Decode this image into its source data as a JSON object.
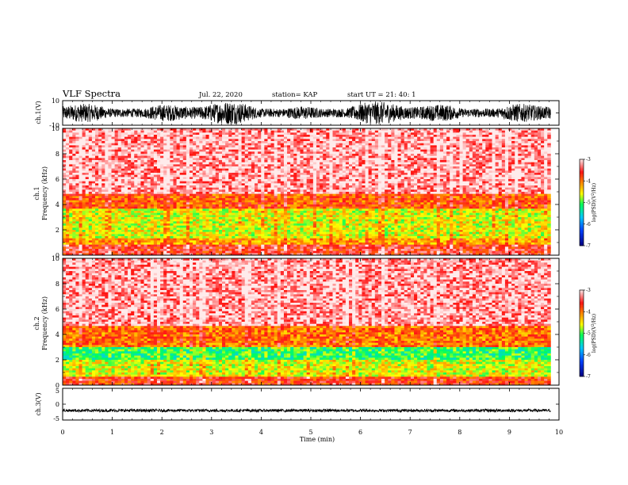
{
  "header": {
    "title": "VLF Spectra",
    "date": "Jul. 22, 2020",
    "station": "station= KAP",
    "start": "start  UT =   21: 40: 1"
  },
  "chart_data": [
    {
      "type": "line",
      "name": "ch1-waveform",
      "ylabel": "ch.1(V)",
      "ylim": [
        -10,
        10
      ],
      "yticks": [
        "10",
        "-10"
      ],
      "xlim": [
        0,
        10
      ],
      "description": "dense noisy voltage waveform saturating near +/-10 V"
    },
    {
      "type": "heatmap",
      "name": "ch1-spectrogram",
      "ylabel": "ch.1\nFrequency (kHz)",
      "ylabel_lines": [
        "ch.1",
        "Frequency (kHz)"
      ],
      "ylim": [
        0,
        10
      ],
      "yticks": [
        "0",
        "2",
        "4",
        "6",
        "8",
        "10"
      ],
      "xlim": [
        0,
        9.83
      ],
      "bands": [
        {
          "from": 0.0,
          "to": 0.8,
          "level": -3.6
        },
        {
          "from": 0.8,
          "to": 1.4,
          "level": -4.2
        },
        {
          "from": 1.4,
          "to": 3.6,
          "level": -4.6
        },
        {
          "from": 3.6,
          "to": 4.8,
          "level": -3.9
        },
        {
          "from": 4.8,
          "to": 10.0,
          "level": -3.2
        }
      ],
      "colorbar": {
        "label": "log(PSD)(V^2/Hz)",
        "label_main": "log(PSD)(V",
        "label_sup": "2",
        "label_end": "/Hz)",
        "range": [
          -7,
          -3
        ],
        "ticks": [
          "-3",
          "-4",
          "-5",
          "-6",
          "-7"
        ]
      }
    },
    {
      "type": "heatmap",
      "name": "ch2-spectrogram",
      "ylabel": "ch.2\nFrequency (kHz)",
      "ylabel_lines": [
        "ch.2",
        "Frequency (kHz)"
      ],
      "ylim": [
        0,
        10
      ],
      "yticks": [
        "0",
        "2",
        "4",
        "6",
        "8",
        "10"
      ],
      "xlim": [
        0,
        9.83
      ],
      "bands": [
        {
          "from": 0.0,
          "to": 0.6,
          "level": -3.7
        },
        {
          "from": 0.6,
          "to": 2.0,
          "level": -4.6
        },
        {
          "from": 2.0,
          "to": 3.0,
          "level": -5.1
        },
        {
          "from": 3.0,
          "to": 4.6,
          "level": -4.0
        },
        {
          "from": 4.6,
          "to": 10.0,
          "level": -3.2
        }
      ],
      "colorbar": {
        "label": "log(PSD)(V^2/Hz)",
        "label_main": "log(PSD)(V",
        "label_sup": "2",
        "label_end": "/Hz)",
        "range": [
          -7,
          -3
        ],
        "ticks": [
          "-3",
          "-4",
          "-5",
          "-6",
          "-7"
        ]
      }
    },
    {
      "type": "line",
      "name": "ch3-waveform",
      "ylabel": "ch.3(V)",
      "ylim": [
        -5,
        5
      ],
      "yticks": [
        "5",
        "0",
        "-5"
      ],
      "xlim": [
        0,
        10
      ],
      "description": "thin noisy band around -2 V"
    }
  ],
  "x_axis": {
    "label": "Time (min)",
    "ticks": [
      "0",
      "1",
      "2",
      "3",
      "4",
      "5",
      "6",
      "7",
      "8",
      "9",
      "10"
    ],
    "range": [
      0,
      10
    ]
  },
  "colors": {
    "background": "#ffffff",
    "trace": "#000000",
    "colormap": [
      "#000080",
      "#0040ff",
      "#00c0ff",
      "#00ff60",
      "#ffff00",
      "#ff8000",
      "#ff0000",
      "#ffffff"
    ]
  }
}
